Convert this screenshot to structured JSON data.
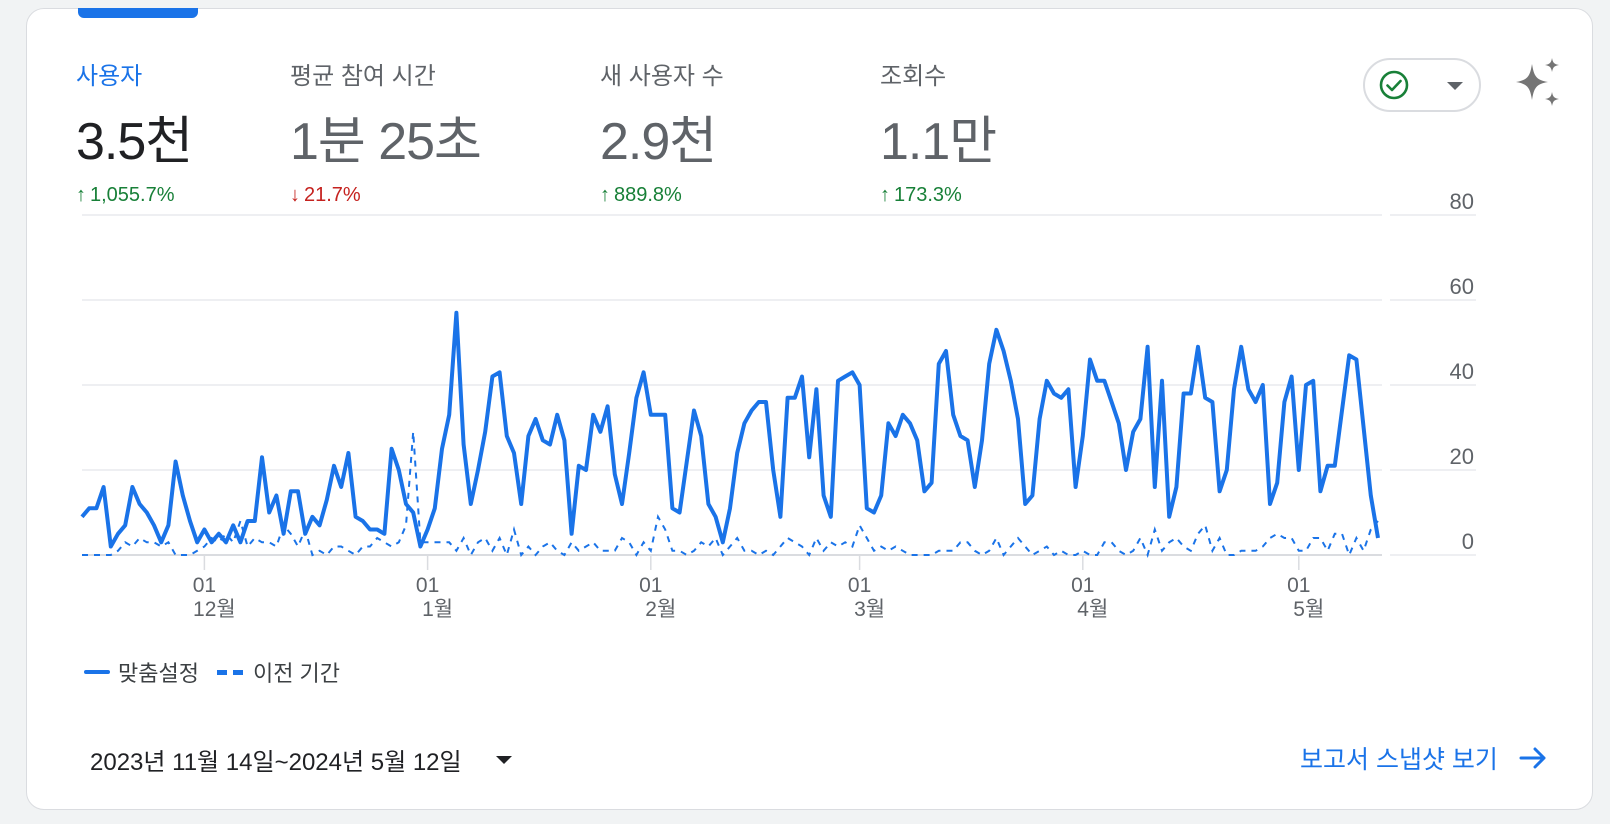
{
  "metrics": [
    {
      "label": "사용자",
      "value": "3.5천",
      "delta": "1,055.7%",
      "direction": "up",
      "active": true
    },
    {
      "label": "평균 참여 시간",
      "value": "1분 25초",
      "delta": "21.7%",
      "direction": "down",
      "active": false
    },
    {
      "label": "새 사용자 수",
      "value": "2.9천",
      "delta": "889.8%",
      "direction": "up",
      "active": false
    },
    {
      "label": "조회수",
      "value": "1.1만",
      "delta": "173.3%",
      "direction": "up",
      "active": false
    }
  ],
  "icons": {
    "status": "check-circle-icon",
    "status_menu": "caret-down-icon",
    "insights": "sparkle-icon",
    "date_menu": "caret-down-icon",
    "snapshot_arrow": "arrow-right-icon"
  },
  "colors": {
    "accent": "#1a73e8",
    "positive": "#188038",
    "negative": "#c5221f",
    "grid": "#e8eaed",
    "axis_text": "#5f6368"
  },
  "legend": {
    "current": "맞춤설정",
    "previous": "이전 기간"
  },
  "footer": {
    "date_range": "2023년 11월 14일~2024년 5월 12일",
    "snapshot_link": "보고서 스냅샷 보기"
  },
  "chart_data": {
    "type": "line",
    "title": "사용자",
    "xlabel": "",
    "ylabel": "",
    "ylim": [
      0,
      80
    ],
    "yticks": [
      0,
      20,
      40,
      60,
      80
    ],
    "grid": true,
    "legend_position": "bottom-left",
    "x_start": "2023-11-14",
    "x_end": "2024-05-12",
    "xticks": [
      {
        "day": "01",
        "month": "12월",
        "index": 17
      },
      {
        "day": "01",
        "month": "1월",
        "index": 48
      },
      {
        "day": "01",
        "month": "2월",
        "index": 79
      },
      {
        "day": "01",
        "month": "3월",
        "index": 108
      },
      {
        "day": "01",
        "month": "4월",
        "index": 139
      },
      {
        "day": "01",
        "month": "5월",
        "index": 169
      }
    ],
    "series": [
      {
        "name": "맞춤설정",
        "style": "solid",
        "values": [
          9,
          11,
          11,
          16,
          2,
          5,
          7,
          16,
          12,
          10,
          7,
          3,
          7,
          22,
          14,
          8,
          3,
          6,
          3,
          5,
          3,
          7,
          3,
          8,
          8,
          23,
          10,
          14,
          5,
          15,
          15,
          5,
          9,
          7,
          13,
          21,
          16,
          24,
          9,
          8,
          6,
          6,
          5,
          25,
          20,
          12,
          10,
          2,
          6,
          11,
          25,
          33,
          57,
          26,
          12,
          20,
          29,
          42,
          43,
          28,
          24,
          12,
          28,
          32,
          27,
          26,
          33,
          27,
          5,
          21,
          20,
          33,
          29,
          35,
          19,
          12,
          24,
          37,
          43,
          33,
          33,
          33,
          11,
          10,
          22,
          34,
          28,
          12,
          9,
          3,
          11,
          24,
          31,
          34,
          36,
          36,
          20,
          9,
          37,
          37,
          42,
          23,
          39,
          14,
          9,
          41,
          42,
          43,
          40,
          11,
          10,
          14,
          31,
          28,
          33,
          31,
          27,
          15,
          17,
          45,
          48,
          33,
          28,
          27,
          16,
          27,
          45,
          53,
          48,
          41,
          32,
          12,
          14,
          32,
          41,
          38,
          37,
          39,
          16,
          28,
          46,
          41,
          41,
          36,
          31,
          20,
          29,
          32,
          49,
          16,
          41,
          9,
          16,
          38,
          38,
          49,
          37,
          36,
          15,
          20,
          39,
          49,
          39,
          36,
          40,
          12,
          17,
          36,
          42,
          20,
          40,
          41,
          15,
          21,
          21,
          34,
          47,
          46,
          30,
          14,
          4
        ]
      },
      {
        "name": "이전 기간",
        "style": "dashed",
        "values": [
          0,
          0,
          0,
          0,
          0,
          1,
          3,
          2,
          4,
          3,
          3,
          2,
          3,
          0,
          0,
          0,
          1,
          2,
          4,
          3,
          5,
          3,
          8,
          2,
          4,
          3,
          3,
          2,
          7,
          5,
          2,
          6,
          0,
          1,
          0,
          2,
          2,
          1,
          0,
          2,
          2,
          4,
          3,
          2,
          3,
          7,
          29,
          3,
          3,
          3,
          3,
          3,
          1,
          4,
          0,
          3,
          4,
          1,
          4,
          0,
          6,
          0,
          2,
          0,
          2,
          3,
          1,
          0,
          3,
          1,
          2,
          3,
          1,
          1,
          1,
          4,
          3,
          0,
          3,
          1,
          9,
          6,
          1,
          1,
          0,
          1,
          3,
          2,
          4,
          0,
          2,
          4,
          1,
          1,
          0,
          1,
          0,
          2,
          4,
          3,
          2,
          0,
          4,
          1,
          3,
          2,
          3,
          2,
          7,
          4,
          1,
          2,
          1,
          2,
          1,
          0,
          0,
          0,
          0,
          1,
          1,
          1,
          3,
          3,
          1,
          0,
          1,
          4,
          0,
          2,
          4,
          2,
          0,
          1,
          2,
          0,
          1,
          0,
          0,
          1,
          0,
          0,
          3,
          3,
          1,
          0,
          1,
          4,
          0,
          6,
          1,
          3,
          4,
          2,
          1,
          5,
          7,
          1,
          4,
          0,
          0,
          1,
          1,
          1,
          2,
          4,
          5,
          4,
          4,
          1,
          1,
          4,
          4,
          1,
          5,
          5,
          0,
          4,
          1,
          6,
          8
        ]
      }
    ]
  }
}
